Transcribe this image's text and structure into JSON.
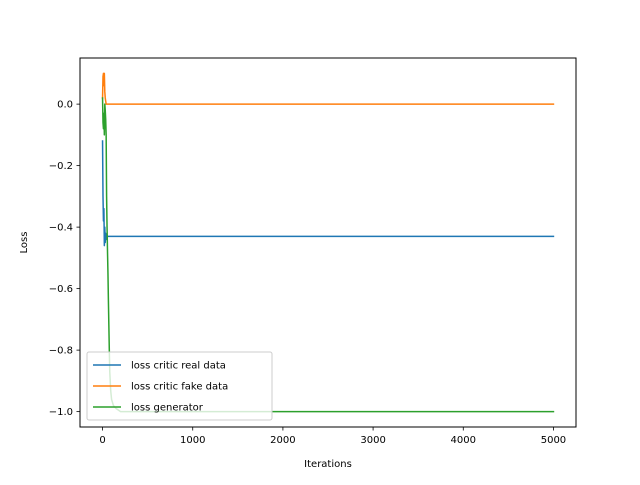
{
  "chart_data": {
    "type": "line",
    "title": "",
    "xlabel": "Iterations",
    "ylabel": "Loss",
    "xlim": [
      -250,
      5250
    ],
    "ylim": [
      -1.05,
      0.15
    ],
    "xticks": [
      0,
      1000,
      2000,
      3000,
      4000,
      5000
    ],
    "yticks": [
      -1.0,
      -0.8,
      -0.6,
      -0.4,
      -0.2,
      0.0
    ],
    "xtick_labels": [
      "0",
      "1000",
      "2000",
      "3000",
      "4000",
      "5000"
    ],
    "ytick_labels": [
      "−1.0",
      "−0.8",
      "−0.6",
      "−0.4",
      "−0.2",
      "0.0"
    ],
    "grid": false,
    "legend_position": "lower-left",
    "series": [
      {
        "name": "loss critic real data",
        "color": "#1f77b4",
        "x": [
          0,
          5,
          10,
          15,
          20,
          25,
          30,
          35,
          40,
          45,
          50,
          60,
          70,
          80,
          100,
          150,
          200,
          500,
          1000,
          2000,
          3000,
          4000,
          5000
        ],
        "y": [
          -0.12,
          -0.3,
          -0.38,
          -0.34,
          -0.46,
          -0.4,
          -0.45,
          -0.42,
          -0.44,
          -0.43,
          -0.43,
          -0.43,
          -0.43,
          -0.43,
          -0.43,
          -0.43,
          -0.43,
          -0.43,
          -0.43,
          -0.43,
          -0.43,
          -0.43,
          -0.43
        ]
      },
      {
        "name": "loss critic fake data",
        "color": "#ff7f0e",
        "x": [
          0,
          5,
          10,
          15,
          20,
          25,
          30,
          35,
          40,
          45,
          50,
          60,
          70,
          80,
          100,
          200,
          500,
          1000,
          2000,
          3000,
          4000,
          5000
        ],
        "y": [
          0.02,
          0.09,
          0.1,
          0.06,
          0.1,
          0.04,
          0.02,
          0.01,
          0.0,
          0.0,
          0.0,
          0.0,
          0.0,
          0.0,
          0.0,
          0.0,
          0.0,
          0.0,
          0.0,
          0.0,
          0.0,
          0.0
        ]
      },
      {
        "name": "loss generator",
        "color": "#2ca02c",
        "x": [
          0,
          5,
          10,
          15,
          20,
          25,
          30,
          35,
          40,
          45,
          50,
          55,
          60,
          65,
          70,
          75,
          80,
          90,
          100,
          120,
          150,
          200,
          300,
          500,
          1000,
          2000,
          3000,
          4000,
          5000
        ],
        "y": [
          0.02,
          -0.06,
          -0.08,
          -0.03,
          -0.1,
          0.0,
          -0.02,
          -0.05,
          -0.1,
          -0.3,
          -0.4,
          -0.48,
          -0.55,
          -0.64,
          -0.72,
          -0.8,
          -0.87,
          -0.93,
          -0.96,
          -0.98,
          -0.99,
          -1.0,
          -1.0,
          -1.0,
          -1.0,
          -1.0,
          -1.0,
          -1.0,
          -1.0
        ]
      }
    ]
  }
}
